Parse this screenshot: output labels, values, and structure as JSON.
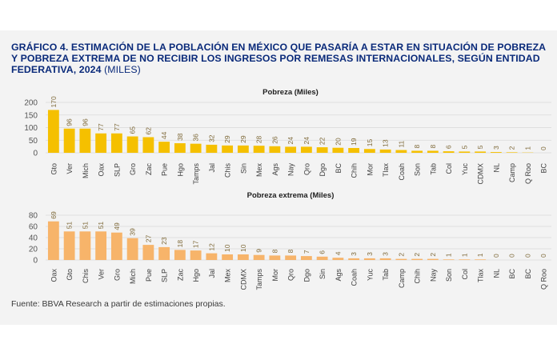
{
  "header": {
    "title": "GRÁFICO 4. ESTIMACIÓN DE LA POBLACIÓN EN MÉXICO QUE PASARÍA A ESTAR EN SITUACIÓN DE POBREZA Y POBREZA EXTREMA DE NO RECIBIR LOS INGRESOS POR REMESAS INTERNACIONALES, SEGÚN ENTIDAD FEDERATIVA, 2024",
    "unit": "(MILES)"
  },
  "footer": {
    "source": "Fuente: BBVA Research a partir de estimaciones propias."
  },
  "colors": {
    "poverty_bar": "#f5c000",
    "extreme_bar": "#f7b46a",
    "title": "#0a2a7a",
    "grid": "#d9d9d9",
    "text": "#404040",
    "label": "#7f6a3a"
  },
  "chart_data": [
    {
      "type": "bar",
      "title": "Pobreza (Miles)",
      "xlabel": "",
      "ylabel": "",
      "ylim": [
        0,
        200
      ],
      "yticks": [
        0,
        50,
        100,
        150,
        200
      ],
      "grid": true,
      "categories": [
        "Gto",
        "Ver",
        "Mich",
        "Oax",
        "SLP",
        "Gro",
        "Zac",
        "Pue",
        "Hgo",
        "Tamps",
        "Jal",
        "Chis",
        "Sin",
        "Mex",
        "Ags",
        "Nay",
        "Qro",
        "Dgo",
        "BC",
        "Chih",
        "Mor",
        "Tlax",
        "Coah",
        "Son",
        "Tab",
        "Col",
        "Yuc",
        "CDMX",
        "NL",
        "Camp",
        "Q Roo",
        "BC"
      ],
      "values": [
        170,
        96,
        96,
        77,
        77,
        65,
        62,
        44,
        38,
        36,
        32,
        29,
        29,
        28,
        26,
        24,
        24,
        22,
        20,
        19,
        15,
        13,
        11,
        8,
        8,
        6,
        5,
        5,
        3,
        2,
        1,
        0
      ]
    },
    {
      "type": "bar",
      "title": "Pobreza extrema (Miles)",
      "xlabel": "",
      "ylabel": "",
      "ylim": [
        0,
        80
      ],
      "yticks": [
        0,
        20,
        40,
        60,
        80
      ],
      "grid": true,
      "categories": [
        "Oax",
        "Gto",
        "Chis",
        "Ver",
        "Gro",
        "Mich",
        "Pue",
        "SLP",
        "Zac",
        "Hgo",
        "Jal",
        "Mex",
        "CDMX",
        "Tamps",
        "Mor",
        "Qro",
        "Dgo",
        "Sin",
        "Ags",
        "Coah",
        "Yuc",
        "Tab",
        "Camp",
        "Chih",
        "Nay",
        "Son",
        "Col",
        "Tlax",
        "NL",
        "BC",
        "BC",
        "Q Roo"
      ],
      "values": [
        69,
        51,
        51,
        51,
        49,
        39,
        27,
        23,
        18,
        17,
        12,
        10,
        10,
        9,
        8,
        8,
        7,
        6,
        4,
        3,
        3,
        3,
        2,
        2,
        2,
        1,
        1,
        1,
        0,
        0,
        0,
        0
      ]
    }
  ]
}
